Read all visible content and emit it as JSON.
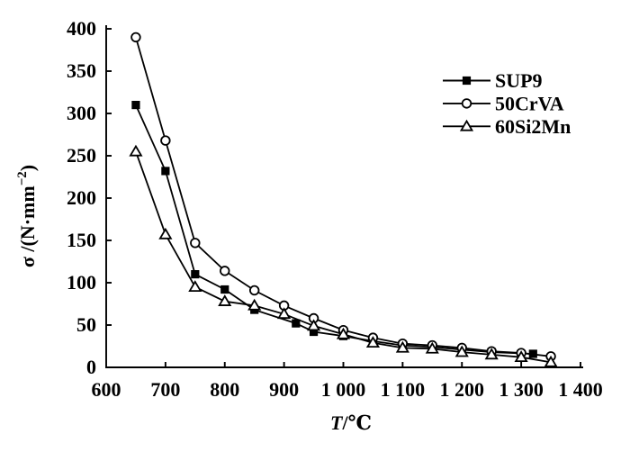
{
  "figure": {
    "kind": "scientific-line-chart",
    "background": "#ffffff"
  },
  "chart_data": {
    "type": "line",
    "title": "",
    "xlabel_parts": {
      "italic": "T",
      "rest": "/℃"
    },
    "ylabel_parts": {
      "prefix": "σ /(N·mm",
      "sup": "−2",
      "suffix": ")"
    },
    "xlim": [
      600,
      1400
    ],
    "ylim": [
      0,
      400
    ],
    "grid": false,
    "legend_position": "upper-right-inside",
    "colors": {
      "ink": "#000000",
      "marker_fill_open": "#ffffff",
      "background": "#ffffff"
    },
    "x_ticks": [
      {
        "v": 600,
        "label": "600"
      },
      {
        "v": 700,
        "label": "700"
      },
      {
        "v": 800,
        "label": "800"
      },
      {
        "v": 900,
        "label": "900"
      },
      {
        "v": 1000,
        "label": "1 000"
      },
      {
        "v": 1100,
        "label": "1 100"
      },
      {
        "v": 1200,
        "label": "1 200"
      },
      {
        "v": 1300,
        "label": "1 300"
      },
      {
        "v": 1400,
        "label": "1 400"
      }
    ],
    "y_ticks": [
      {
        "v": 0,
        "label": "0"
      },
      {
        "v": 50,
        "label": "50"
      },
      {
        "v": 100,
        "label": "100"
      },
      {
        "v": 150,
        "label": "150"
      },
      {
        "v": 200,
        "label": "200"
      },
      {
        "v": 250,
        "label": "250"
      },
      {
        "v": 300,
        "label": "300"
      },
      {
        "v": 350,
        "label": "350"
      },
      {
        "v": 400,
        "label": "400"
      }
    ],
    "series": [
      {
        "name": "SUP9",
        "marker": "filled-square",
        "points": [
          [
            650,
            310
          ],
          [
            700,
            232
          ],
          [
            750,
            110
          ],
          [
            800,
            92
          ],
          [
            850,
            68
          ],
          [
            920,
            52
          ],
          [
            950,
            42
          ],
          [
            1000,
            37
          ],
          [
            1050,
            31
          ],
          [
            1100,
            26
          ],
          [
            1150,
            24
          ],
          [
            1200,
            21
          ],
          [
            1250,
            18
          ],
          [
            1320,
            16
          ]
        ]
      },
      {
        "name": "50CrVA",
        "marker": "open-circle",
        "points": [
          [
            650,
            390
          ],
          [
            700,
            268
          ],
          [
            750,
            147
          ],
          [
            800,
            114
          ],
          [
            850,
            91
          ],
          [
            900,
            73
          ],
          [
            950,
            58
          ],
          [
            1000,
            44
          ],
          [
            1050,
            35
          ],
          [
            1100,
            28
          ],
          [
            1150,
            26
          ],
          [
            1200,
            23
          ],
          [
            1250,
            19
          ],
          [
            1300,
            17
          ],
          [
            1350,
            13
          ]
        ]
      },
      {
        "name": "60Si2Mn",
        "marker": "open-triangle",
        "points": [
          [
            650,
            255
          ],
          [
            700,
            157
          ],
          [
            750,
            95
          ],
          [
            800,
            78
          ],
          [
            850,
            73
          ],
          [
            900,
            63
          ],
          [
            950,
            49
          ],
          [
            1000,
            39
          ],
          [
            1050,
            29
          ],
          [
            1100,
            23
          ],
          [
            1150,
            22
          ],
          [
            1200,
            18
          ],
          [
            1250,
            15
          ],
          [
            1300,
            12
          ],
          [
            1350,
            6
          ]
        ]
      }
    ]
  }
}
